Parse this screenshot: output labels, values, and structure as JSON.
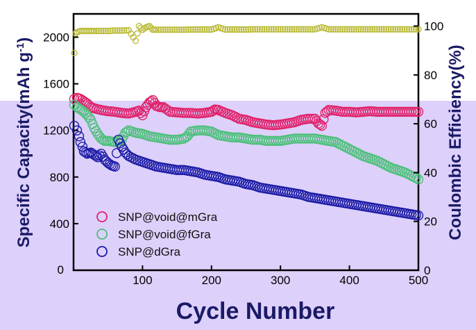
{
  "chart_data": {
    "type": "scatter",
    "xlabel": "Cycle Number",
    "ylabel_left": "Specific Capacity(mAh g",
    "ylabel_left_sup": "-1",
    "ylabel_left_close": ")",
    "ylabel_right": "Coulombic Efficiency(%)",
    "xlim": [
      0,
      500
    ],
    "ylim_left": [
      0,
      2200
    ],
    "ylim_right": [
      0,
      105
    ],
    "x_ticks": [
      100,
      200,
      300,
      400,
      500
    ],
    "y_ticks_left": [
      0,
      400,
      800,
      1200,
      1600,
      2000
    ],
    "y_ticks_right": [
      0,
      20,
      40,
      60,
      80,
      100
    ],
    "x_tick_labels": [
      "100",
      "200",
      "300",
      "400",
      "500"
    ],
    "y_tick_labels_left": [
      "0",
      "400",
      "800",
      "1200",
      "1600",
      "2000"
    ],
    "y_tick_labels_right": [
      "0",
      "20",
      "40",
      "60",
      "80",
      "100"
    ],
    "x_origin_label": "0",
    "legend_position": "bottom-left",
    "grid": false,
    "colors": {
      "background_band": "#ddd0fa",
      "SNP@void@mGra": "#e0216a",
      "SNP@void@fGra": "#4cc07a",
      "SNP@dGra": "#1b1ba6",
      "coulombic": "#bdbd40"
    },
    "series": [
      {
        "name": "SNP@void@mGra",
        "axis": "left",
        "points": [
          [
            1,
            1470
          ],
          [
            5,
            1480
          ],
          [
            10,
            1470
          ],
          [
            15,
            1450
          ],
          [
            20,
            1430
          ],
          [
            25,
            1400
          ],
          [
            30,
            1390
          ],
          [
            40,
            1375
          ],
          [
            50,
            1365
          ],
          [
            60,
            1360
          ],
          [
            70,
            1350
          ],
          [
            80,
            1345
          ],
          [
            90,
            1360
          ],
          [
            95,
            1370
          ],
          [
            100,
            1330
          ],
          [
            105,
            1400
          ],
          [
            110,
            1440
          ],
          [
            115,
            1460
          ],
          [
            120,
            1410
          ],
          [
            125,
            1400
          ],
          [
            130,
            1400
          ],
          [
            140,
            1360
          ],
          [
            150,
            1355
          ],
          [
            160,
            1350
          ],
          [
            170,
            1350
          ],
          [
            180,
            1345
          ],
          [
            190,
            1350
          ],
          [
            200,
            1360
          ],
          [
            205,
            1380
          ],
          [
            210,
            1375
          ],
          [
            220,
            1350
          ],
          [
            230,
            1330
          ],
          [
            240,
            1300
          ],
          [
            250,
            1290
          ],
          [
            260,
            1270
          ],
          [
            270,
            1260
          ],
          [
            280,
            1250
          ],
          [
            290,
            1245
          ],
          [
            300,
            1250
          ],
          [
            310,
            1260
          ],
          [
            320,
            1270
          ],
          [
            330,
            1290
          ],
          [
            340,
            1300
          ],
          [
            350,
            1300
          ],
          [
            355,
            1260
          ],
          [
            360,
            1240
          ],
          [
            365,
            1350
          ],
          [
            370,
            1375
          ],
          [
            380,
            1370
          ],
          [
            390,
            1360
          ],
          [
            400,
            1360
          ],
          [
            410,
            1355
          ],
          [
            420,
            1360
          ],
          [
            430,
            1365
          ],
          [
            440,
            1360
          ],
          [
            450,
            1360
          ],
          [
            460,
            1360
          ],
          [
            470,
            1360
          ],
          [
            480,
            1360
          ],
          [
            490,
            1360
          ],
          [
            500,
            1360
          ]
        ]
      },
      {
        "name": "SNP@void@fGra",
        "axis": "left",
        "points": [
          [
            1,
            1420
          ],
          [
            5,
            1400
          ],
          [
            10,
            1380
          ],
          [
            15,
            1360
          ],
          [
            20,
            1330
          ],
          [
            25,
            1290
          ],
          [
            30,
            1220
          ],
          [
            35,
            1170
          ],
          [
            40,
            1130
          ],
          [
            45,
            1110
          ],
          [
            50,
            1110
          ],
          [
            60,
            1100
          ],
          [
            70,
            1120
          ],
          [
            75,
            1180
          ],
          [
            80,
            1200
          ],
          [
            90,
            1180
          ],
          [
            100,
            1170
          ],
          [
            110,
            1150
          ],
          [
            120,
            1140
          ],
          [
            130,
            1130
          ],
          [
            140,
            1120
          ],
          [
            150,
            1120
          ],
          [
            160,
            1130
          ],
          [
            165,
            1150
          ],
          [
            170,
            1190
          ],
          [
            180,
            1200
          ],
          [
            190,
            1200
          ],
          [
            200,
            1190
          ],
          [
            210,
            1160
          ],
          [
            220,
            1150
          ],
          [
            230,
            1140
          ],
          [
            240,
            1140
          ],
          [
            250,
            1130
          ],
          [
            260,
            1120
          ],
          [
            270,
            1120
          ],
          [
            280,
            1110
          ],
          [
            290,
            1110
          ],
          [
            300,
            1110
          ],
          [
            310,
            1120
          ],
          [
            320,
            1130
          ],
          [
            330,
            1130
          ],
          [
            340,
            1130
          ],
          [
            350,
            1130
          ],
          [
            360,
            1120
          ],
          [
            370,
            1110
          ],
          [
            380,
            1100
          ],
          [
            390,
            1070
          ],
          [
            400,
            1040
          ],
          [
            410,
            1010
          ],
          [
            420,
            980
          ],
          [
            430,
            960
          ],
          [
            440,
            940
          ],
          [
            450,
            910
          ],
          [
            460,
            880
          ],
          [
            470,
            860
          ],
          [
            480,
            840
          ],
          [
            490,
            810
          ],
          [
            500,
            780
          ]
        ]
      },
      {
        "name": "SNP@dGra",
        "axis": "left",
        "points": [
          [
            1,
            1240
          ],
          [
            5,
            1200
          ],
          [
            8,
            1150
          ],
          [
            10,
            1100
          ],
          [
            13,
            1060
          ],
          [
            15,
            1020
          ],
          [
            20,
            1000
          ],
          [
            25,
            1010
          ],
          [
            30,
            990
          ],
          [
            35,
            970
          ],
          [
            40,
            1000
          ],
          [
            45,
            950
          ],
          [
            50,
            920
          ],
          [
            55,
            900
          ],
          [
            60,
            890
          ],
          [
            65,
            1120
          ],
          [
            70,
            1060
          ],
          [
            75,
            1010
          ],
          [
            80,
            980
          ],
          [
            90,
            950
          ],
          [
            100,
            930
          ],
          [
            110,
            910
          ],
          [
            120,
            890
          ],
          [
            130,
            880
          ],
          [
            140,
            870
          ],
          [
            150,
            860
          ],
          [
            160,
            860
          ],
          [
            170,
            850
          ],
          [
            180,
            840
          ],
          [
            190,
            820
          ],
          [
            200,
            810
          ],
          [
            210,
            800
          ],
          [
            220,
            780
          ],
          [
            230,
            770
          ],
          [
            240,
            760
          ],
          [
            250,
            740
          ],
          [
            260,
            730
          ],
          [
            270,
            710
          ],
          [
            280,
            700
          ],
          [
            290,
            690
          ],
          [
            300,
            680
          ],
          [
            310,
            670
          ],
          [
            320,
            660
          ],
          [
            330,
            650
          ],
          [
            340,
            630
          ],
          [
            350,
            620
          ],
          [
            360,
            610
          ],
          [
            370,
            600
          ],
          [
            380,
            590
          ],
          [
            390,
            580
          ],
          [
            400,
            570
          ],
          [
            410,
            560
          ],
          [
            420,
            550
          ],
          [
            430,
            540
          ],
          [
            440,
            530
          ],
          [
            450,
            520
          ],
          [
            460,
            510
          ],
          [
            470,
            500
          ],
          [
            480,
            490
          ],
          [
            490,
            480
          ],
          [
            500,
            470
          ]
        ]
      },
      {
        "name": "",
        "axis": "right",
        "points": [
          [
            1,
            89
          ],
          [
            3,
            97
          ],
          [
            5,
            97.5
          ],
          [
            10,
            98
          ],
          [
            15,
            98
          ],
          [
            20,
            98
          ],
          [
            25,
            98
          ],
          [
            30,
            98
          ],
          [
            40,
            98
          ],
          [
            50,
            98
          ],
          [
            60,
            98.2
          ],
          [
            70,
            98.2
          ],
          [
            80,
            98.3
          ],
          [
            90,
            94
          ],
          [
            95,
            100
          ],
          [
            100,
            98.5
          ],
          [
            105,
            99.5
          ],
          [
            110,
            100
          ],
          [
            115,
            98.5
          ],
          [
            120,
            98.5
          ],
          [
            130,
            98.5
          ],
          [
            140,
            98.5
          ],
          [
            150,
            98.5
          ],
          [
            160,
            98.5
          ],
          [
            170,
            98.6
          ],
          [
            180,
            98.6
          ],
          [
            190,
            98.6
          ],
          [
            200,
            98.6
          ],
          [
            210,
            99.5
          ],
          [
            220,
            98.6
          ],
          [
            230,
            98.6
          ],
          [
            240,
            98.6
          ],
          [
            250,
            98.6
          ],
          [
            260,
            98.7
          ],
          [
            270,
            98.7
          ],
          [
            280,
            98.7
          ],
          [
            290,
            98.7
          ],
          [
            300,
            98.7
          ],
          [
            310,
            98.7
          ],
          [
            320,
            98.7
          ],
          [
            330,
            98.7
          ],
          [
            340,
            98.7
          ],
          [
            350,
            98.7
          ],
          [
            360,
            99.5
          ],
          [
            370,
            98.7
          ],
          [
            380,
            98.7
          ],
          [
            390,
            98.7
          ],
          [
            400,
            98.7
          ],
          [
            410,
            98.7
          ],
          [
            420,
            98.7
          ],
          [
            430,
            98.7
          ],
          [
            440,
            98.7
          ],
          [
            450,
            98.7
          ],
          [
            460,
            98.7
          ],
          [
            470,
            98.7
          ],
          [
            480,
            98.7
          ],
          [
            490,
            98.7
          ],
          [
            500,
            98.7
          ]
        ]
      }
    ]
  }
}
